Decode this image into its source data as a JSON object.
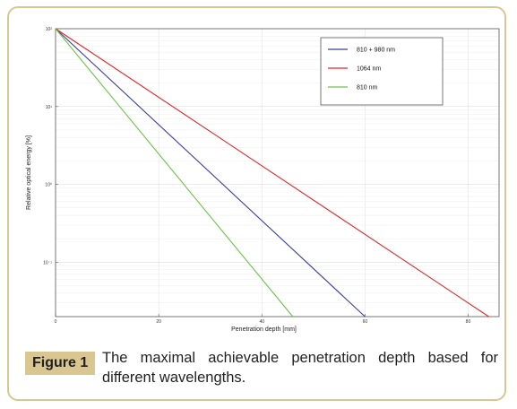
{
  "caption": {
    "label": "Figure 1",
    "text": "The maximal achievable penetration depth based for different wavelengths."
  },
  "colors": {
    "frame_border": "#d9c690",
    "label_background": "#d9c690"
  },
  "chart_data": {
    "type": "line",
    "xlabel": "Penetration depth [mm]",
    "ylabel": "Relative optical energy [%]",
    "xlim": [
      0,
      86
    ],
    "ylim": [
      0.02,
      100
    ],
    "yscale": "log",
    "grid": true,
    "legend_position": "top-right",
    "x_ticks": [
      0,
      20,
      40,
      60,
      80
    ],
    "y_ticks": [
      {
        "value": 100,
        "label": "10²"
      },
      {
        "value": 10,
        "label": "10¹"
      },
      {
        "value": 1,
        "label": "10⁰"
      },
      {
        "value": 0.1,
        "label": "10⁻¹"
      }
    ],
    "series": [
      {
        "name": "810 + 980 nm",
        "color": "#3a3fa0",
        "x": [
          0,
          60
        ],
        "y": [
          100,
          0.02
        ]
      },
      {
        "name": "1064 nm",
        "color": "#e0262a",
        "x": [
          0,
          84
        ],
        "y": [
          100,
          0.02
        ]
      },
      {
        "name": "810 nm",
        "color": "#6cc24a",
        "x": [
          0,
          46
        ],
        "y": [
          100,
          0.02
        ]
      }
    ]
  }
}
